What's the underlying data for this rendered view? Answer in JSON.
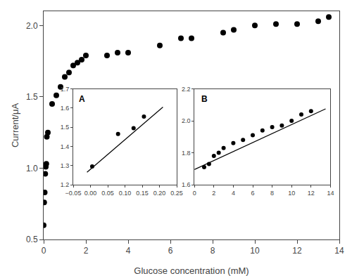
{
  "chart_data": [
    {
      "type": "scatter",
      "x": [
        0.0,
        0.025,
        0.05,
        0.075,
        0.1,
        0.125,
        0.15,
        0.2,
        0.4,
        0.6,
        0.8,
        1.0,
        1.2,
        1.4,
        1.6,
        1.8,
        2.0,
        3.0,
        3.5,
        4.0,
        5.5,
        6.5,
        7.0,
        8.5,
        9.0,
        10.0,
        11.0,
        12.0,
        13.0,
        13.5
      ],
      "values": [
        0.6,
        0.76,
        0.83,
        0.96,
        1.01,
        1.03,
        1.22,
        1.25,
        1.45,
        1.51,
        1.57,
        1.64,
        1.67,
        1.72,
        1.74,
        1.76,
        1.79,
        1.79,
        1.81,
        1.81,
        1.86,
        1.91,
        1.91,
        1.95,
        1.97,
        2.0,
        2.01,
        2.01,
        2.03,
        2.06
      ],
      "color": "#000000",
      "marker": "circle",
      "xlabel": "Glucose concentration (mM)",
      "ylabel": "Current/μA",
      "xlim": [
        0,
        14
      ],
      "ylim": [
        0.5,
        2.1
      ],
      "xticks": [
        0,
        2,
        4,
        6,
        8,
        10,
        12,
        14
      ],
      "yticks": [
        0.5,
        {
          "value": 1.0,
          "label": "1.0"
        },
        1.5,
        {
          "value": 2.0,
          "label": "2.0"
        }
      ],
      "grid": false
    },
    {
      "type": "scatter",
      "series": [
        {
          "type": "scatter",
          "x": [
            0.005,
            0.08,
            0.125,
            0.155
          ],
          "values": [
            1.295,
            1.465,
            1.495,
            1.555
          ],
          "color": "#000000",
          "marker": "circle"
        },
        {
          "type": "line",
          "x": [
            -0.01,
            0.21
          ],
          "values": [
            1.265,
            1.605
          ],
          "color": "#000000",
          "line_style": "solid"
        }
      ],
      "annotations": [
        {
          "text": "A"
        }
      ],
      "xlim": [
        -0.05,
        0.25
      ],
      "ylim": [
        1.2,
        1.7
      ],
      "xticks": [
        {
          "value": -0.05,
          "label": "−0.05"
        },
        {
          "value": 0.0,
          "label": "0.00"
        },
        0.05,
        {
          "value": 0.1,
          "label": "0.10"
        },
        0.15,
        {
          "value": 0.2,
          "label": "0.20"
        },
        0.25
      ],
      "yticks": [
        1.2,
        1.3,
        1.4,
        1.5,
        1.6,
        1.7
      ],
      "grid": false
    },
    {
      "type": "scatter",
      "series": [
        {
          "type": "scatter",
          "x": [
            1.0,
            1.5,
            2.0,
            2.5,
            3.0,
            4.0,
            5.0,
            6.0,
            7.0,
            8.0,
            9.0,
            10.0,
            11.0,
            12.0
          ],
          "values": [
            1.71,
            1.73,
            1.78,
            1.8,
            1.83,
            1.86,
            1.88,
            1.91,
            1.94,
            1.96,
            1.97,
            2.0,
            2.04,
            2.06
          ],
          "color": "#000000",
          "marker": "circle"
        },
        {
          "type": "line",
          "x": [
            0.0,
            13.5
          ],
          "values": [
            1.695,
            2.075
          ],
          "color": "#000000",
          "line_style": "solid"
        }
      ],
      "annotations": [
        {
          "text": "B"
        }
      ],
      "xlim": [
        0,
        14
      ],
      "ylim": [
        1.6,
        2.2
      ],
      "xticks": [
        0,
        2,
        4,
        6,
        8,
        10,
        12,
        14
      ],
      "yticks": [
        1.6,
        1.8,
        {
          "value": 2.0,
          "label": "2.0"
        },
        2.2
      ],
      "grid": false
    }
  ]
}
